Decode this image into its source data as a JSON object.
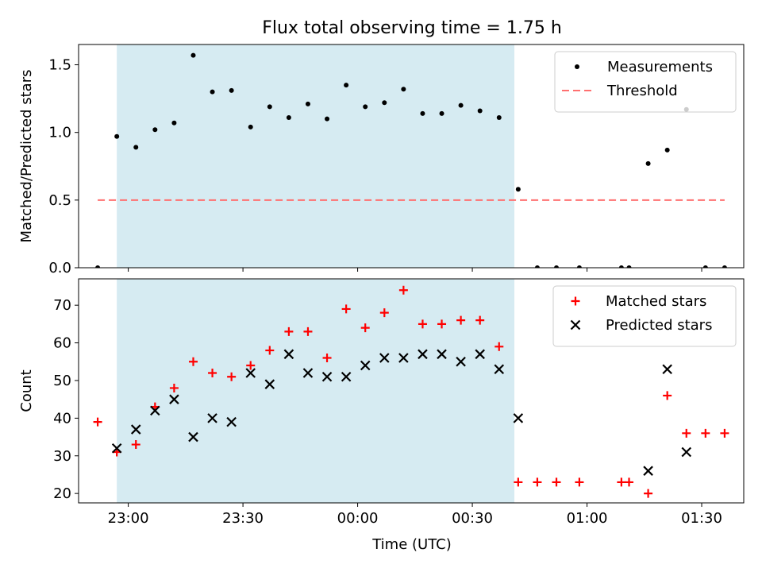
{
  "chart_data": {
    "title": "Flux total observing time = 1.75 h",
    "xlabel": "Time (UTC)",
    "x_ticks": [
      "23:00",
      "23:30",
      "00:00",
      "00:30",
      "01:00",
      "01:30"
    ],
    "highlight_span": {
      "start": "22:57",
      "end": "00:41",
      "color": "#add8e6"
    },
    "panels": [
      {
        "type": "scatter",
        "ylabel": "Matched/Predicted stars",
        "ylim": [
          0,
          1.65
        ],
        "yticks": [
          "0.0",
          "0.5",
          "1.0",
          "1.5"
        ],
        "legend_position": "top-right",
        "series": [
          {
            "name": "Measurements",
            "marker": "dot",
            "color": "#000000",
            "points": [
              [
                "22:52",
                0.0
              ],
              [
                "22:57",
                0.97
              ],
              [
                "23:02",
                0.89
              ],
              [
                "23:07",
                1.02
              ],
              [
                "23:12",
                1.07
              ],
              [
                "23:17",
                1.57
              ],
              [
                "23:22",
                1.3
              ],
              [
                "23:27",
                1.31
              ],
              [
                "23:32",
                1.04
              ],
              [
                "23:37",
                1.19
              ],
              [
                "23:42",
                1.11
              ],
              [
                "23:47",
                1.21
              ],
              [
                "23:52",
                1.1
              ],
              [
                "23:57",
                1.35
              ],
              [
                "00:02",
                1.19
              ],
              [
                "00:07",
                1.22
              ],
              [
                "00:12",
                1.32
              ],
              [
                "00:17",
                1.14
              ],
              [
                "00:22",
                1.14
              ],
              [
                "00:27",
                1.2
              ],
              [
                "00:32",
                1.16
              ],
              [
                "00:37",
                1.11
              ],
              [
                "00:42",
                0.58
              ],
              [
                "00:47",
                0.0
              ],
              [
                "00:52",
                0.0
              ],
              [
                "00:58",
                0.0
              ],
              [
                "01:09",
                0.0
              ],
              [
                "01:11",
                0.0
              ],
              [
                "01:16",
                0.77
              ],
              [
                "01:21",
                0.87
              ],
              [
                "01:26",
                1.17
              ],
              [
                "01:31",
                0.0
              ],
              [
                "01:36",
                0.0
              ]
            ]
          },
          {
            "name": "Threshold",
            "style": "dashed-line",
            "color": "#ff7070",
            "points": [
              [
                "22:52",
                0.5
              ],
              [
                "01:36",
                0.5
              ]
            ]
          }
        ]
      },
      {
        "type": "scatter",
        "ylabel": "Count",
        "ylim": [
          17.5,
          77
        ],
        "yticks": [
          "20",
          "30",
          "40",
          "50",
          "60",
          "70"
        ],
        "legend_position": "top-right",
        "series": [
          {
            "name": "Matched stars",
            "marker": "plus",
            "color": "#ff0000",
            "points": [
              [
                "22:52",
                39
              ],
              [
                "22:57",
                31
              ],
              [
                "23:02",
                33
              ],
              [
                "23:07",
                43
              ],
              [
                "23:12",
                48
              ],
              [
                "23:17",
                55
              ],
              [
                "23:22",
                52
              ],
              [
                "23:27",
                51
              ],
              [
                "23:32",
                54
              ],
              [
                "23:37",
                58
              ],
              [
                "23:42",
                63
              ],
              [
                "23:47",
                63
              ],
              [
                "23:52",
                56
              ],
              [
                "23:57",
                69
              ],
              [
                "00:02",
                64
              ],
              [
                "00:07",
                68
              ],
              [
                "00:12",
                74
              ],
              [
                "00:17",
                65
              ],
              [
                "00:22",
                65
              ],
              [
                "00:27",
                66
              ],
              [
                "00:32",
                66
              ],
              [
                "00:37",
                59
              ],
              [
                "00:42",
                23
              ],
              [
                "00:47",
                23
              ],
              [
                "00:52",
                23
              ],
              [
                "00:58",
                23
              ],
              [
                "01:09",
                23
              ],
              [
                "01:11",
                23
              ],
              [
                "01:16",
                20
              ],
              [
                "01:21",
                46
              ],
              [
                "01:26",
                36
              ],
              [
                "01:31",
                36
              ],
              [
                "01:36",
                36
              ]
            ]
          },
          {
            "name": "Predicted stars",
            "marker": "x",
            "color": "#000000",
            "points": [
              [
                "22:57",
                32
              ],
              [
                "23:02",
                37
              ],
              [
                "23:07",
                42
              ],
              [
                "23:12",
                45
              ],
              [
                "23:17",
                35
              ],
              [
                "23:22",
                40
              ],
              [
                "23:27",
                39
              ],
              [
                "23:32",
                52
              ],
              [
                "23:37",
                49
              ],
              [
                "23:42",
                57
              ],
              [
                "23:47",
                52
              ],
              [
                "23:52",
                51
              ],
              [
                "23:57",
                51
              ],
              [
                "00:02",
                54
              ],
              [
                "00:07",
                56
              ],
              [
                "00:12",
                56
              ],
              [
                "00:17",
                57
              ],
              [
                "00:22",
                57
              ],
              [
                "00:27",
                55
              ],
              [
                "00:32",
                57
              ],
              [
                "00:37",
                53
              ],
              [
                "00:42",
                40
              ],
              [
                "01:16",
                26
              ],
              [
                "01:21",
                53
              ],
              [
                "01:26",
                31
              ]
            ]
          }
        ]
      }
    ]
  }
}
